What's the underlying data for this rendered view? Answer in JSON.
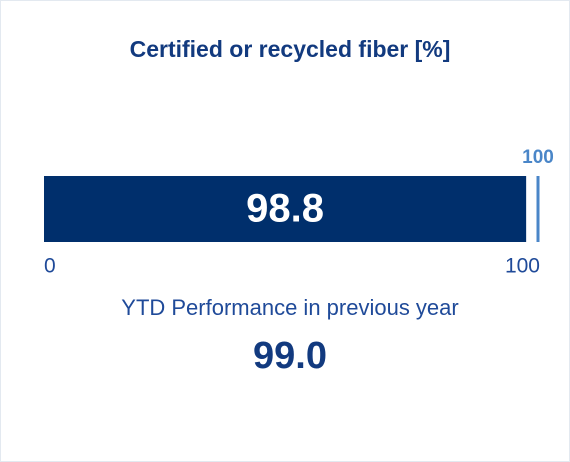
{
  "chart_data": {
    "type": "bullet",
    "title": "Certified or recycled fiber [%]",
    "values": [
      98.8
    ],
    "color": "#002f6c",
    "target": 100,
    "target_color": "#4a86c8",
    "xlim": [
      0,
      100
    ],
    "xticks": [
      0,
      100
    ],
    "previous": {
      "label": "YTD Performance in previous year",
      "values": [
        99
      ],
      "value_labels": [
        "99.0"
      ]
    }
  }
}
